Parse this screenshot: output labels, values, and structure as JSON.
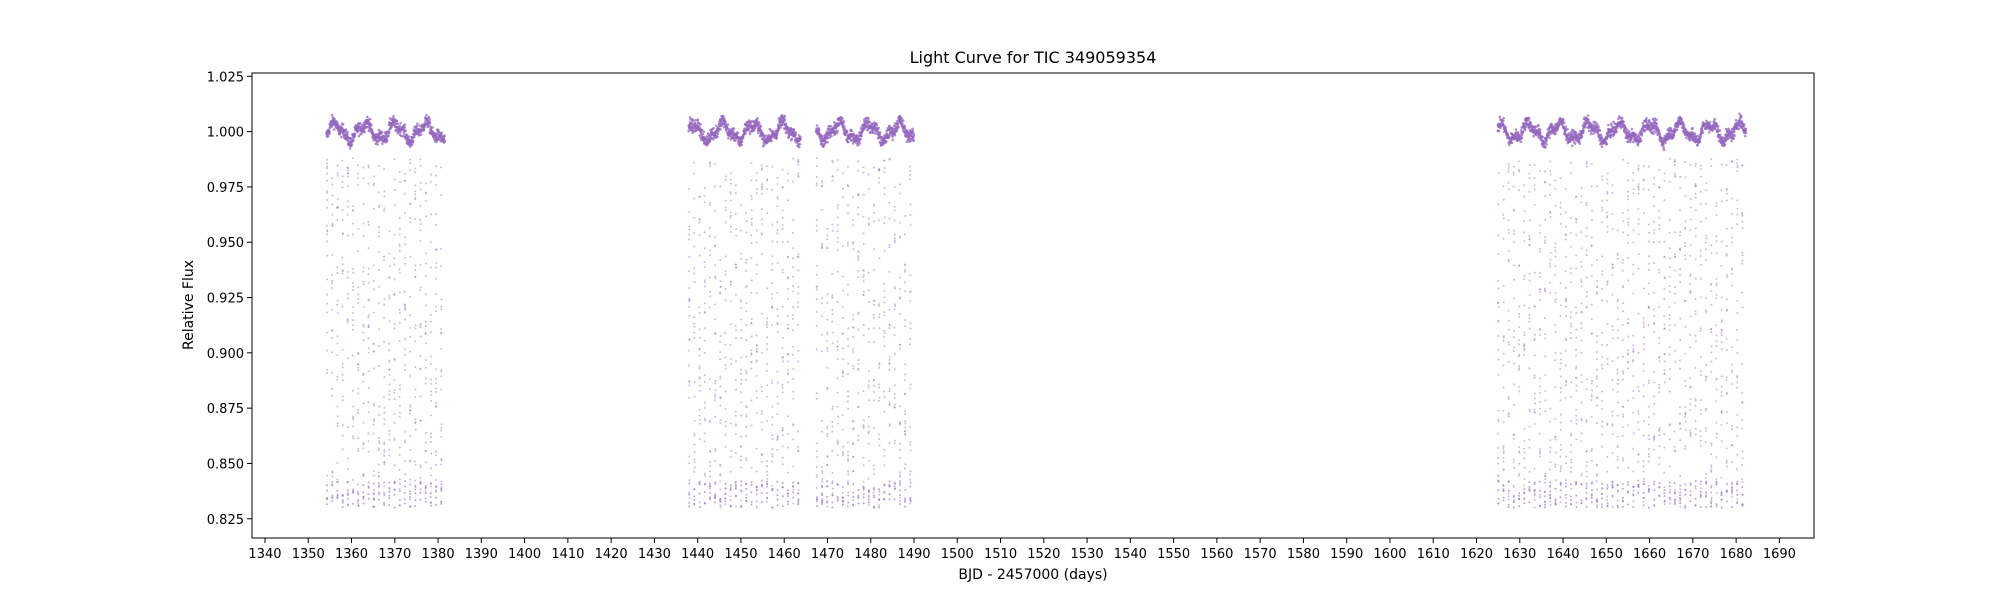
{
  "chart_data": {
    "type": "scatter",
    "title": "Light Curve for TIC 349059354",
    "xlabel": "BJD - 2457000 (days)",
    "ylabel": "Relative Flux",
    "xlim": [
      1337,
      1698
    ],
    "ylim": [
      0.8163,
      1.0265
    ],
    "x_ticks": [
      1340,
      1350,
      1360,
      1370,
      1380,
      1390,
      1400,
      1410,
      1420,
      1430,
      1440,
      1450,
      1460,
      1470,
      1480,
      1490,
      1500,
      1510,
      1520,
      1530,
      1540,
      1550,
      1560,
      1570,
      1580,
      1590,
      1600,
      1610,
      1620,
      1630,
      1640,
      1650,
      1660,
      1670,
      1680,
      1690
    ],
    "y_ticks": [
      0.825,
      0.85,
      0.875,
      0.9,
      0.925,
      0.95,
      0.975,
      1.0,
      1.025
    ],
    "y_tick_labels": [
      "0.825",
      "0.850",
      "0.875",
      "0.900",
      "0.925",
      "0.950",
      "0.975",
      "1.000",
      "1.025"
    ],
    "grid": false,
    "marker_color": "#9467bd",
    "series": [
      {
        "segments": [
          [
            1354.2,
            1381.6
          ],
          [
            1437.9,
            1463.8
          ],
          [
            1467.4,
            1490.0
          ],
          [
            1624.9,
            1682.3
          ]
        ],
        "baseline_flux": 1.0,
        "baseline_scatter": 0.006,
        "dip_min_flux": 0.83,
        "dip_spacing_days": 1.2
      }
    ]
  }
}
